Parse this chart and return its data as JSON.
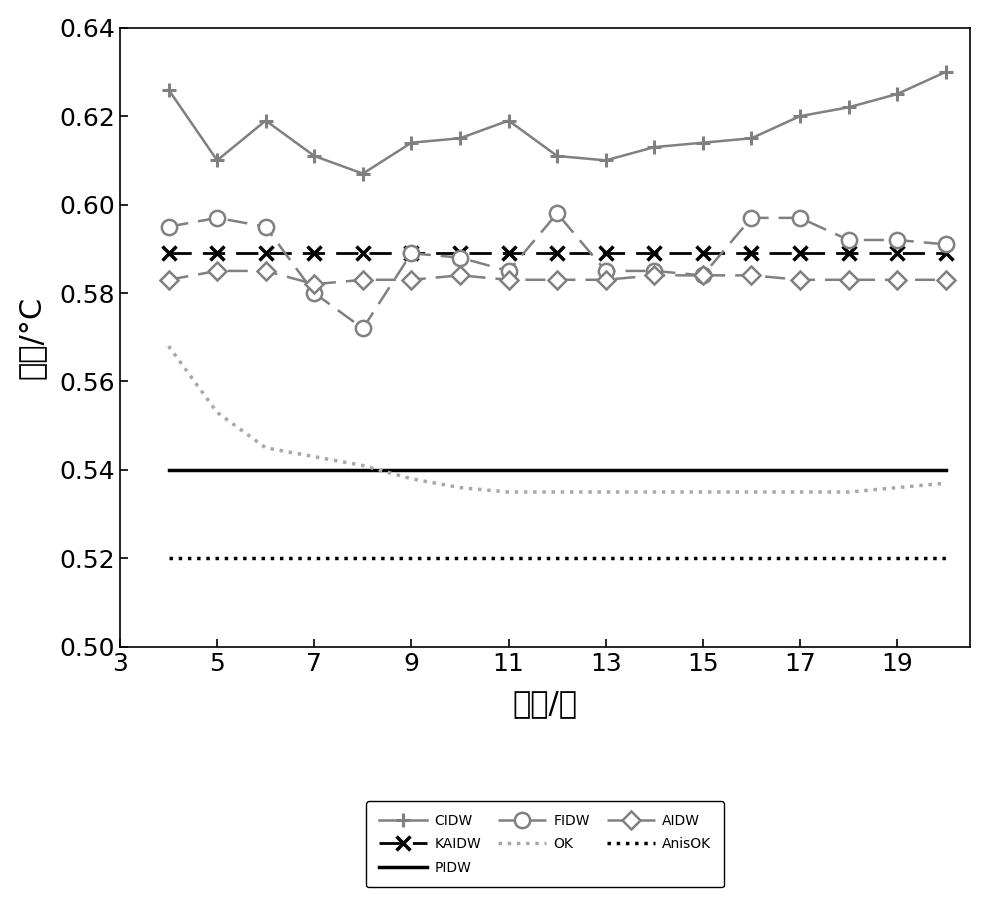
{
  "x": [
    4,
    5,
    6,
    7,
    8,
    9,
    10,
    11,
    12,
    13,
    14,
    15,
    16,
    17,
    18,
    19,
    20
  ],
  "CIDW": [
    0.626,
    0.61,
    0.619,
    0.611,
    0.607,
    0.614,
    0.615,
    0.619,
    0.611,
    0.61,
    0.613,
    0.614,
    0.615,
    0.62,
    0.622,
    0.625,
    0.63
  ],
  "KAIDW": [
    0.589,
    0.589,
    0.589,
    0.589,
    0.589,
    0.589,
    0.589,
    0.589,
    0.589,
    0.589,
    0.589,
    0.589,
    0.589,
    0.589,
    0.589,
    0.589,
    0.589
  ],
  "PIDW": [
    0.54,
    0.54,
    0.54,
    0.54,
    0.54,
    0.54,
    0.54,
    0.54,
    0.54,
    0.54,
    0.54,
    0.54,
    0.54,
    0.54,
    0.54,
    0.54,
    0.54
  ],
  "FIDW": [
    0.595,
    0.597,
    0.595,
    0.58,
    0.572,
    0.589,
    0.588,
    0.585,
    0.598,
    0.585,
    0.585,
    0.584,
    0.597,
    0.597,
    0.592,
    0.592,
    0.591
  ],
  "OK": [
    0.568,
    0.553,
    0.545,
    0.543,
    0.541,
    0.538,
    0.536,
    0.535,
    0.535,
    0.535,
    0.535,
    0.535,
    0.535,
    0.535,
    0.535,
    0.536,
    0.537
  ],
  "AIDW": [
    0.583,
    0.585,
    0.585,
    0.582,
    0.583,
    0.583,
    0.584,
    0.583,
    0.583,
    0.583,
    0.584,
    0.584,
    0.584,
    0.583,
    0.583,
    0.583,
    0.583
  ],
  "AnisOK": [
    0.52,
    0.52,
    0.52,
    0.52,
    0.52,
    0.52,
    0.52,
    0.52,
    0.52,
    0.52,
    0.52,
    0.52,
    0.52,
    0.52,
    0.52,
    0.52,
    0.52
  ],
  "ylabel": "误差/°C",
  "xlabel": "点数/个",
  "ylim": [
    0.5,
    0.64
  ],
  "xlim": [
    3,
    20.5
  ],
  "yticks": [
    0.5,
    0.52,
    0.54,
    0.56,
    0.58,
    0.6,
    0.62,
    0.64
  ],
  "xticks": [
    3,
    5,
    7,
    9,
    11,
    13,
    15,
    17,
    19
  ],
  "gray": "#808080",
  "light_gray": "#A8A8A8",
  "black": "#000000"
}
